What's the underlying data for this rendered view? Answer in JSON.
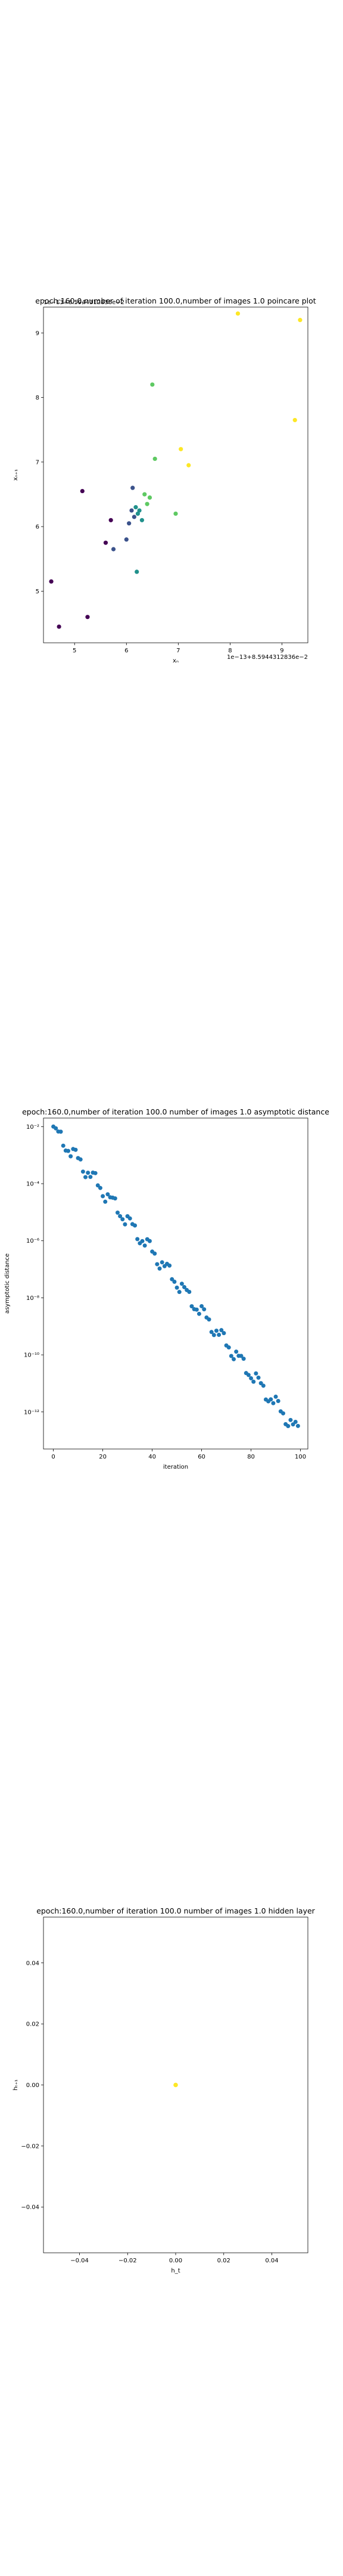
{
  "chart_data": [
    {
      "type": "scatter",
      "title": "epoch:160.0,number of iteration 100.0,number of images 1.0 poincare plot",
      "xlabel": "xₙ",
      "ylabel": "xₙ₊₁",
      "xlim": [
        4.4,
        9.5
      ],
      "ylim": [
        4.2,
        9.4
      ],
      "xticks": [
        5,
        6,
        7,
        8,
        9
      ],
      "yticks": [
        5,
        6,
        7,
        8,
        9
      ],
      "x_offset_text": "1e−13+8.5944312836e−2",
      "y_offset_text": "1e−13+8.5944312836e−2",
      "colormap": [
        "#440154",
        "#3b528b",
        "#21918c",
        "#5ec962",
        "#fde725"
      ],
      "grid": false,
      "points": [
        {
          "x": 4.55,
          "y": 5.15
        },
        {
          "x": 4.7,
          "y": 4.45
        },
        {
          "x": 5.15,
          "y": 6.55
        },
        {
          "x": 5.25,
          "y": 4.6
        },
        {
          "x": 5.6,
          "y": 5.75
        },
        {
          "x": 5.7,
          "y": 6.1
        },
        {
          "x": 5.75,
          "y": 5.65
        },
        {
          "x": 6.0,
          "y": 5.8
        },
        {
          "x": 6.05,
          "y": 6.05
        },
        {
          "x": 6.1,
          "y": 6.25
        },
        {
          "x": 6.12,
          "y": 6.6
        },
        {
          "x": 6.15,
          "y": 6.15
        },
        {
          "x": 6.18,
          "y": 6.3
        },
        {
          "x": 6.2,
          "y": 5.3
        },
        {
          "x": 6.22,
          "y": 6.2
        },
        {
          "x": 6.25,
          "y": 6.25
        },
        {
          "x": 6.3,
          "y": 6.1
        },
        {
          "x": 6.35,
          "y": 6.5
        },
        {
          "x": 6.4,
          "y": 6.35
        },
        {
          "x": 6.45,
          "y": 6.45
        },
        {
          "x": 6.5,
          "y": 8.2
        },
        {
          "x": 6.55,
          "y": 7.05
        },
        {
          "x": 6.95,
          "y": 6.2
        },
        {
          "x": 7.05,
          "y": 7.2
        },
        {
          "x": 7.2,
          "y": 6.95
        },
        {
          "x": 8.15,
          "y": 9.3
        },
        {
          "x": 9.25,
          "y": 7.65
        },
        {
          "x": 9.35,
          "y": 9.2
        }
      ]
    },
    {
      "type": "scatter",
      "title": "epoch:160.0,number of iteration 100.0  number of images 1.0 asymptotic distance",
      "xlabel": "iteration",
      "ylabel": "asymptotic distance",
      "xlim": [
        -4,
        103
      ],
      "ylim_log10": [
        -13.3,
        -1.7
      ],
      "yscale": "log",
      "xticks": [
        0,
        20,
        40,
        60,
        80,
        100
      ],
      "yticks": [
        {
          "exp": -2,
          "label": "10⁻²"
        },
        {
          "exp": -4,
          "label": "10⁻⁴"
        },
        {
          "exp": -6,
          "label": "10⁻⁶"
        },
        {
          "exp": -8,
          "label": "10⁻⁸"
        },
        {
          "exp": -10,
          "label": "10⁻¹⁰"
        },
        {
          "exp": -12,
          "label": "10⁻¹²"
        }
      ],
      "color": "#1f77b4",
      "grid": false,
      "log10_start": -2.1,
      "log10_end": -12.7,
      "n_points": 100
    },
    {
      "type": "scatter",
      "title": "epoch:160.0,number of iteration 100.0  number of images 1.0 hidden layer",
      "xlabel": "h_t",
      "ylabel": "hₜ₊₁",
      "xlim": [
        -0.055,
        0.055
      ],
      "ylim": [
        -0.055,
        0.055
      ],
      "xticks": [
        -0.04,
        -0.02,
        0.0,
        0.02,
        0.04
      ],
      "yticks": [
        -0.04,
        -0.02,
        0.0,
        0.02,
        0.04
      ],
      "xtick_labels": [
        "−0.04",
        "−0.02",
        "0.00",
        "0.02",
        "0.04"
      ],
      "ytick_labels": [
        "−0.04",
        "−0.02",
        "0.00",
        "0.02",
        "0.04"
      ],
      "grid": false,
      "points": [
        {
          "x": 0.0,
          "y": 0.0,
          "color": "#fde725"
        }
      ]
    }
  ]
}
